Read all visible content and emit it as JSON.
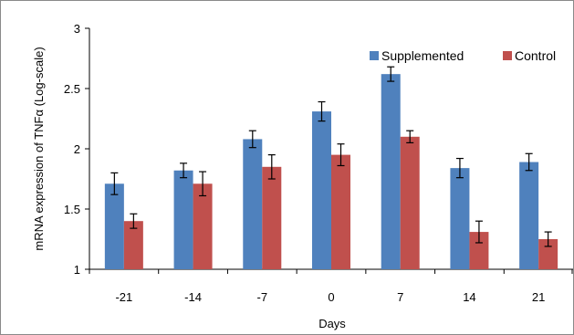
{
  "chart_data": {
    "type": "bar",
    "title": "",
    "xlabel": "Days",
    "ylabel": "mRNA expression of TNFα (Log-scale)",
    "categories": [
      "-21",
      "-14",
      "-7",
      "0",
      "7",
      "14",
      "21"
    ],
    "ylim": [
      1,
      3
    ],
    "yticks": [
      "1",
      "1.5",
      "2",
      "2.5",
      "3"
    ],
    "grid": false,
    "legend_position": "top-right",
    "series": [
      {
        "name": "Supplemented",
        "color": "#4f81bd",
        "values": [
          1.71,
          1.82,
          2.08,
          2.31,
          2.62,
          1.84,
          1.89
        ],
        "errors": [
          0.09,
          0.06,
          0.07,
          0.08,
          0.06,
          0.08,
          0.07
        ]
      },
      {
        "name": "Control",
        "color": "#c0504d",
        "values": [
          1.4,
          1.71,
          1.85,
          1.95,
          2.1,
          1.31,
          1.25
        ],
        "errors": [
          0.06,
          0.1,
          0.1,
          0.09,
          0.05,
          0.09,
          0.06
        ]
      }
    ]
  }
}
